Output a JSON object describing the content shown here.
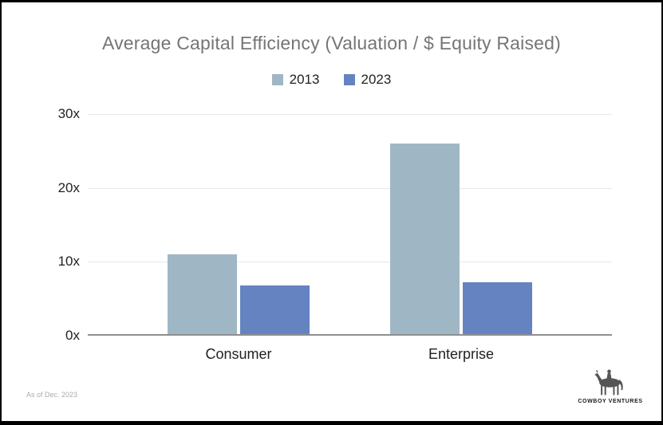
{
  "frame": {
    "background": "#ffffff",
    "border_color": "#000000"
  },
  "chart_data": {
    "type": "bar",
    "title": "Average Capital Efficiency (Valuation / $ Equity Raised)",
    "title_color": "#757575",
    "categories": [
      "Consumer",
      "Enterprise"
    ],
    "series": [
      {
        "name": "2013",
        "color": "#9fb7c5",
        "values": [
          11,
          26
        ]
      },
      {
        "name": "2023",
        "color": "#6483c0",
        "values": [
          6.8,
          7.2
        ]
      }
    ],
    "ylim": [
      0,
      30
    ],
    "yticks": [
      {
        "value": 0,
        "label": "0x"
      },
      {
        "value": 10,
        "label": "10x"
      },
      {
        "value": 20,
        "label": "20x"
      },
      {
        "value": 30,
        "label": "30x"
      }
    ],
    "grid": true,
    "grid_color": "#e8e8e8",
    "baseline_color": "#8f8f8f",
    "legend_position": "top",
    "xlabel": "",
    "ylabel": ""
  },
  "footer": {
    "note": "As of Dec. 2023"
  },
  "logo": {
    "icon": "cowboy-on-horse-icon",
    "text": "COWBOY VENTURES"
  }
}
